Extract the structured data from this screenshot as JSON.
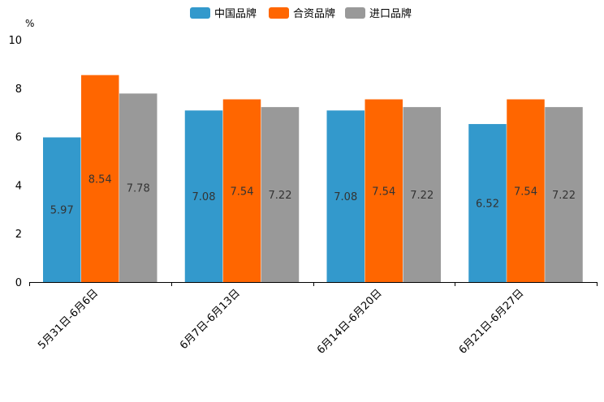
{
  "chart_data": {
    "type": "bar",
    "title": "",
    "ylabel": "%",
    "xlabel": "",
    "ylim": [
      0,
      10
    ],
    "yticks": [
      0,
      2,
      4,
      6,
      8,
      10
    ],
    "grid": false,
    "legend_position": "top-center",
    "categories": [
      "5月31日-6月6日",
      "6月7日-6月13日",
      "6月14日-6月20日",
      "6月21日-6月27日"
    ],
    "series": [
      {
        "name": "中国品牌",
        "color": "#3399cc",
        "values": [
          5.97,
          7.08,
          7.08,
          6.52
        ]
      },
      {
        "name": "合资品牌",
        "color": "#ff6600",
        "values": [
          8.54,
          7.54,
          7.54,
          7.54
        ]
      },
      {
        "name": "进口品牌",
        "color": "#999999",
        "values": [
          7.78,
          7.22,
          7.22,
          7.22
        ]
      }
    ]
  }
}
